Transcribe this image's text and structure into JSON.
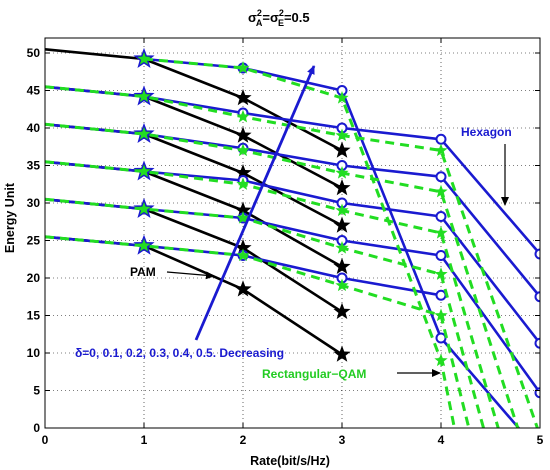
{
  "chart_data": {
    "type": "line",
    "title_base": "σ",
    "title_sup1": "2",
    "title_sub1": "A",
    "title_mid": "=σ",
    "title_sup2": "2",
    "title_sub2": "E",
    "title_tail": "=0.5",
    "xlabel": "Rate(bit/s/Hz)",
    "ylabel": "Energy Unit",
    "xlim": [
      0,
      5
    ],
    "ylim": [
      0,
      52
    ],
    "xticks": [
      "0",
      "1",
      "2",
      "3",
      "4",
      "5"
    ],
    "yticks": [
      "0",
      "5",
      "10",
      "15",
      "20",
      "25",
      "30",
      "35",
      "40",
      "45",
      "50"
    ],
    "grid": true,
    "annotations": {
      "hexagon": "Hexagon",
      "pam": "PAM",
      "delta": "δ=0, 0.1, 0.2, 0.3, 0.4, 0.5. Decreasing",
      "rectqam": "Rectangular−QAM"
    },
    "colors": {
      "pam": "#000000",
      "hexagon": "#1a1ad0",
      "rectqam": "#22dd22",
      "arrow": "#1a1ad0"
    },
    "series": [
      {
        "group": "PAM",
        "x": [
          0,
          1,
          2,
          3
        ],
        "y": [
          50.5,
          49.2,
          44.0,
          37.0
        ]
      },
      {
        "group": "PAM",
        "x": [
          0,
          1,
          2,
          3
        ],
        "y": [
          45.5,
          44.2,
          39.0,
          32.0
        ]
      },
      {
        "group": "PAM",
        "x": [
          0,
          1,
          2,
          3
        ],
        "y": [
          40.5,
          39.2,
          34.0,
          27.0
        ]
      },
      {
        "group": "PAM",
        "x": [
          0,
          1,
          2,
          3
        ],
        "y": [
          35.5,
          34.2,
          29.0,
          21.5
        ]
      },
      {
        "group": "PAM",
        "x": [
          0,
          1,
          2,
          3
        ],
        "y": [
          30.5,
          29.2,
          24.0,
          15.5
        ]
      },
      {
        "group": "PAM",
        "x": [
          0,
          1,
          2,
          3
        ],
        "y": [
          25.5,
          24.3,
          18.5,
          9.8
        ]
      },
      {
        "group": "Hexagon",
        "x": [
          0,
          1,
          2,
          3,
          4,
          5
        ],
        "y": [
          45.5,
          44.2,
          42.0,
          40.0,
          38.5,
          23.2
        ]
      },
      {
        "group": "Hexagon",
        "x": [
          0,
          1,
          2,
          3,
          4,
          5
        ],
        "y": [
          40.5,
          39.2,
          37.3,
          35.0,
          33.5,
          17.5
        ]
      },
      {
        "group": "Hexagon",
        "x": [
          0,
          1,
          2,
          3,
          4,
          5
        ],
        "y": [
          35.5,
          34.2,
          33.0,
          30.0,
          28.2,
          11.3
        ]
      },
      {
        "group": "Hexagon",
        "x": [
          0,
          1,
          2,
          3,
          4,
          5
        ],
        "y": [
          30.5,
          29.2,
          28.0,
          25.0,
          23.0,
          4.7
        ]
      },
      {
        "group": "Hexagon",
        "x": [
          0,
          1,
          2,
          3,
          4
        ],
        "y": [
          25.5,
          24.3,
          23.0,
          20.0,
          17.7
        ]
      },
      {
        "group": "Hexagon",
        "x": [
          1,
          2,
          3,
          4,
          4.85
        ],
        "y": [
          49.2,
          48.0,
          45.0,
          12.0,
          -1
        ]
      },
      {
        "group": "Rectangular-QAM",
        "x": [
          0,
          1,
          2,
          3,
          4,
          5
        ],
        "y": [
          45.5,
          44.2,
          41.5,
          39.0,
          37.0,
          -1
        ]
      },
      {
        "group": "Rectangular-QAM",
        "x": [
          0,
          1,
          2,
          3,
          4,
          4.8
        ],
        "y": [
          40.5,
          39.2,
          37.0,
          34.0,
          31.5,
          -1
        ]
      },
      {
        "group": "Rectangular-QAM",
        "x": [
          0,
          1,
          2,
          3,
          4,
          4.6
        ],
        "y": [
          35.5,
          34.2,
          32.5,
          29.0,
          26.0,
          -1
        ]
      },
      {
        "group": "Rectangular-QAM",
        "x": [
          0,
          1,
          2,
          3,
          4,
          4.45
        ],
        "y": [
          30.5,
          29.2,
          28.0,
          24.0,
          20.5,
          -1
        ]
      },
      {
        "group": "Rectangular-QAM",
        "x": [
          0,
          1,
          2,
          3,
          4,
          4.3
        ],
        "y": [
          25.5,
          24.3,
          23.0,
          19.0,
          15.0,
          -1
        ]
      },
      {
        "group": "Rectangular-QAM",
        "x": [
          1,
          2,
          3,
          4,
          4.15
        ],
        "y": [
          49.2,
          48.0,
          44.0,
          9.0,
          -1
        ]
      }
    ]
  }
}
